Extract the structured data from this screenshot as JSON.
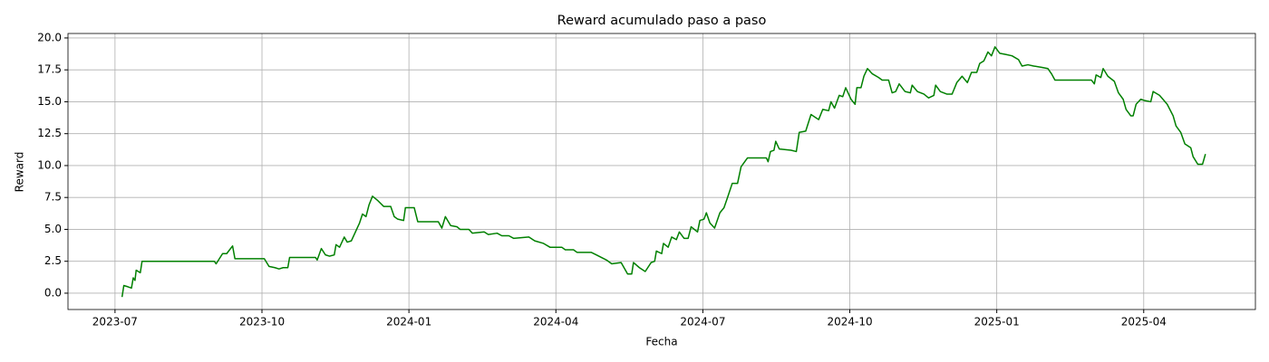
{
  "chart_data": {
    "type": "line",
    "title": "Reward acumulado paso a paso",
    "xlabel": "Fecha",
    "ylabel": "Reward",
    "grid": true,
    "xlim": [
      2023.42,
      2025.44
    ],
    "xticks": [
      {
        "value": 2023.5,
        "label": "2023-07"
      },
      {
        "value": 2023.75,
        "label": "2023-10"
      },
      {
        "value": 2024.0,
        "label": "2024-01"
      },
      {
        "value": 2024.25,
        "label": "2024-04"
      },
      {
        "value": 2024.5,
        "label": "2024-07"
      },
      {
        "value": 2024.75,
        "label": "2024-10"
      },
      {
        "value": 2025.0,
        "label": "2025-01"
      },
      {
        "value": 2025.25,
        "label": "2025-04"
      }
    ],
    "ylim": [
      -1.28,
      20.35
    ],
    "yticks": [
      {
        "value": 0,
        "label": "0.0"
      },
      2.5,
      {
        "value": 5,
        "label": "5.0"
      },
      7.5,
      {
        "value": 10,
        "label": "10.0"
      },
      12.5,
      {
        "value": 15,
        "label": "15.0"
      },
      17.5,
      {
        "value": 20,
        "label": "20.0"
      }
    ],
    "series": [
      {
        "name": "Reward",
        "color": "#008000",
        "x": [
          2023.512,
          2023.515,
          2023.522,
          2023.528,
          2023.531,
          2023.534,
          2023.536,
          2023.543,
          2023.546,
          2023.669,
          2023.672,
          2023.683,
          2023.69,
          2023.695,
          2023.7,
          2023.704,
          2023.754,
          2023.762,
          2023.772,
          2023.779,
          2023.786,
          2023.794,
          2023.797,
          2023.841,
          2023.844,
          2023.851,
          2023.858,
          2023.865,
          2023.873,
          2023.876,
          2023.882,
          2023.89,
          2023.895,
          2023.902,
          2023.909,
          2023.916,
          2023.921,
          2023.927,
          2023.932,
          2023.938,
          2023.946,
          2023.957,
          2023.969,
          2023.975,
          2023.981,
          2023.991,
          2023.994,
          2024.009,
          2024.015,
          2024.05,
          2024.056,
          2024.062,
          2024.071,
          2024.082,
          2024.087,
          2024.102,
          2024.108,
          2024.128,
          2024.135,
          2024.15,
          2024.158,
          2024.17,
          2024.178,
          2024.204,
          2024.214,
          2024.229,
          2024.24,
          2024.26,
          2024.266,
          2024.28,
          2024.286,
          2024.31,
          2024.319,
          2024.336,
          2024.345,
          2024.361,
          2024.372,
          2024.379,
          2024.382,
          2024.392,
          2024.402,
          2024.412,
          2024.418,
          2024.421,
          2024.43,
          2024.433,
          2024.441,
          2024.447,
          2024.455,
          2024.46,
          2024.468,
          2024.475,
          2024.48,
          2024.491,
          2024.495,
          2024.502,
          2024.506,
          2024.512,
          2024.52,
          2024.529,
          2024.536,
          2024.542,
          2024.55,
          2024.559,
          2024.565,
          2024.576,
          2024.608,
          2024.611,
          2024.615,
          2024.621,
          2024.624,
          2024.63,
          2024.65,
          2024.659,
          2024.664,
          2024.675,
          2024.684,
          2024.697,
          2024.704,
          2024.714,
          2024.718,
          2024.724,
          2024.732,
          2024.738,
          2024.743,
          2024.752,
          2024.759,
          2024.762,
          2024.769,
          2024.774,
          2024.78,
          2024.788,
          2024.799,
          2024.805,
          2024.816,
          2024.822,
          2024.828,
          2024.834,
          2024.844,
          2024.853,
          2024.856,
          2024.865,
          2024.876,
          2024.884,
          2024.893,
          2024.896,
          2024.904,
          2024.915,
          2024.924,
          2024.932,
          2024.941,
          2024.95,
          2024.957,
          2024.966,
          2024.971,
          2024.978,
          2024.985,
          2024.991,
          2024.997,
          2025.005,
          2025.016,
          2025.026,
          2025.037,
          2025.043,
          2025.053,
          2025.063,
          2025.076,
          2025.087,
          2025.093,
          2025.099,
          2025.161,
          2025.166,
          2025.169,
          2025.177,
          2025.181,
          2025.189,
          2025.2,
          2025.207,
          2025.215,
          2025.22,
          2025.228,
          2025.232,
          2025.237,
          2025.245,
          2025.251,
          2025.262,
          2025.266,
          2025.277,
          2025.29,
          2025.3,
          2025.305,
          2025.313,
          2025.32,
          2025.33,
          2025.334,
          2025.342,
          2025.35,
          2025.355
        ],
        "values": [
          -0.3,
          0.6,
          0.5,
          0.4,
          1.2,
          1.0,
          1.8,
          1.6,
          2.5,
          2.5,
          2.3,
          3.1,
          3.1,
          3.4,
          3.7,
          2.7,
          2.7,
          2.1,
          2.0,
          1.9,
          2.0,
          2.0,
          2.8,
          2.8,
          2.6,
          3.5,
          3.0,
          2.9,
          3.0,
          3.8,
          3.6,
          4.4,
          4.0,
          4.1,
          4.8,
          5.5,
          6.2,
          6.0,
          6.9,
          7.6,
          7.3,
          6.8,
          6.8,
          6.0,
          5.8,
          5.7,
          6.7,
          6.7,
          5.6,
          5.6,
          5.1,
          6.0,
          5.3,
          5.2,
          5.0,
          5.0,
          4.7,
          4.8,
          4.6,
          4.7,
          4.5,
          4.5,
          4.3,
          4.4,
          4.1,
          3.9,
          3.6,
          3.6,
          3.4,
          3.4,
          3.2,
          3.2,
          3.0,
          2.6,
          2.3,
          2.4,
          1.5,
          1.5,
          2.4,
          2.0,
          1.7,
          2.4,
          2.5,
          3.3,
          3.1,
          3.9,
          3.6,
          4.4,
          4.2,
          4.8,
          4.3,
          4.3,
          5.2,
          4.8,
          5.7,
          5.8,
          6.3,
          5.5,
          5.1,
          6.3,
          6.7,
          7.5,
          8.6,
          8.6,
          9.9,
          10.6,
          10.6,
          10.3,
          11.1,
          11.2,
          11.9,
          11.3,
          11.2,
          11.1,
          12.6,
          12.7,
          14.0,
          13.6,
          14.4,
          14.3,
          15.0,
          14.5,
          15.5,
          15.4,
          16.1,
          15.2,
          14.8,
          16.1,
          16.1,
          17.0,
          17.6,
          17.2,
          16.9,
          16.7,
          16.7,
          15.7,
          15.8,
          16.4,
          15.8,
          15.7,
          16.3,
          15.8,
          15.6,
          15.3,
          15.5,
          16.3,
          15.8,
          15.6,
          15.6,
          16.5,
          17.0,
          16.5,
          17.3,
          17.3,
          18.0,
          18.2,
          18.9,
          18.6,
          19.3,
          18.8,
          18.7,
          18.6,
          18.3,
          17.8,
          17.9,
          17.8,
          17.7,
          17.6,
          17.2,
          16.7,
          16.7,
          16.4,
          17.1,
          16.9,
          17.6,
          17.0,
          16.6,
          15.7,
          15.2,
          14.4,
          13.9,
          13.9,
          14.8,
          15.2,
          15.1,
          15.0,
          15.8,
          15.5,
          14.8,
          13.9,
          13.1,
          12.6,
          11.7,
          11.4,
          10.7,
          10.1,
          10.1,
          10.9
        ]
      }
    ]
  }
}
